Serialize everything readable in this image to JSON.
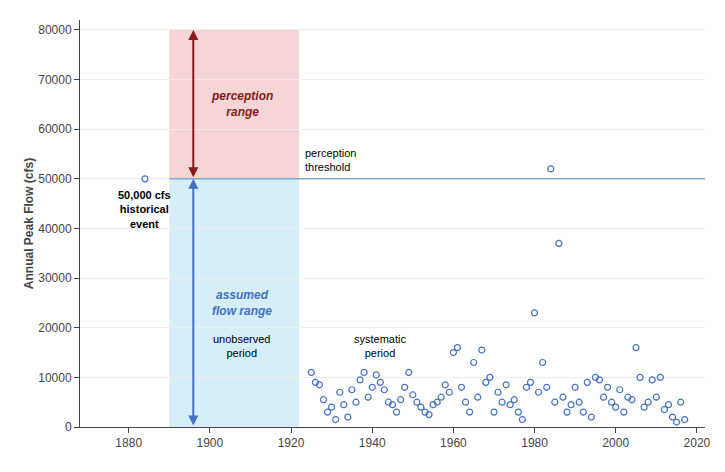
{
  "chart_data": {
    "type": "scatter",
    "ylabel": "Annual Peak Flow (cfs)",
    "xlim": [
      1868,
      2022
    ],
    "ylim": [
      0,
      82000
    ],
    "xticks": [
      1880,
      1900,
      1920,
      1940,
      1960,
      1980,
      2000,
      2020
    ],
    "yticks": [
      0,
      10000,
      20000,
      30000,
      40000,
      50000,
      60000,
      70000,
      80000
    ],
    "grid": "y",
    "series": [
      {
        "color": "#4472C4",
        "marker": "open circle",
        "x": [
          1925,
          1926,
          1927,
          1928,
          1929,
          1930,
          1931,
          1932,
          1933,
          1934,
          1935,
          1936,
          1937,
          1938,
          1939,
          1940,
          1941,
          1942,
          1943,
          1944,
          1945,
          1946,
          1947,
          1948,
          1949,
          1950,
          1951,
          1952,
          1953,
          1954,
          1955,
          1956,
          1957,
          1958,
          1959,
          1960,
          1961,
          1962,
          1963,
          1964,
          1965,
          1966,
          1967,
          1968,
          1969,
          1970,
          1971,
          1972,
          1973,
          1974,
          1975,
          1976,
          1977,
          1978,
          1979,
          1980,
          1981,
          1982,
          1983,
          1984,
          1985,
          1986,
          1987,
          1988,
          1989,
          1990,
          1991,
          1992,
          1993,
          1994,
          1995,
          1996,
          1997,
          1998,
          1999,
          2000,
          2001,
          2002,
          2003,
          2004,
          2005,
          2006,
          2007,
          2008,
          2009,
          2010,
          2011,
          2012,
          2013,
          2014,
          2015,
          2016,
          2017
        ],
        "values": [
          11000,
          9000,
          8500,
          5500,
          3000,
          4000,
          1500,
          7000,
          4500,
          2000,
          7500,
          5000,
          9500,
          11000,
          6000,
          8000,
          10500,
          9000,
          7500,
          5000,
          4500,
          3000,
          5500,
          8000,
          11000,
          6500,
          5000,
          4000,
          3000,
          2500,
          4500,
          5000,
          6000,
          8500,
          7000,
          15000,
          16000,
          8000,
          5000,
          3000,
          13000,
          6000,
          15500,
          9000,
          10000,
          3000,
          7000,
          5000,
          8500,
          4500,
          5500,
          3000,
          1500,
          8000,
          9000,
          23000,
          7000,
          13000,
          8000,
          52000,
          5000,
          37000,
          6000,
          3000,
          4500,
          8000,
          5000,
          3000,
          9000,
          2000,
          10000,
          9500,
          6000,
          8000,
          5000,
          4000,
          7500,
          3000,
          6000,
          5500,
          16000,
          10000,
          4000,
          5000,
          9500,
          6000,
          10000,
          3500,
          4500,
          2000,
          1000,
          5000,
          1500
        ]
      },
      {
        "color": "#4472C4",
        "marker": "open circle",
        "x": [
          1884
        ],
        "values": [
          50000
        ],
        "label": "50,000 cfs\nhistorical\nevent"
      }
    ],
    "bands": [
      {
        "x": [
          1890,
          1922
        ],
        "y": [
          50000,
          80000
        ],
        "color": "#f5d5d5",
        "label": "perception\nrange",
        "label_color": "#8B1A1A"
      },
      {
        "x": [
          1890,
          1922
        ],
        "y": [
          0,
          50000
        ],
        "color": "#d5eef8",
        "label": "assumed\nflow range",
        "label_color": "#4472C4"
      }
    ],
    "threshold": {
      "value": 50000,
      "color": "#7faacc",
      "label": "perception\nthreshold"
    },
    "annotations": [
      "unobserved\nperiod",
      "systematic\nperiod"
    ]
  }
}
